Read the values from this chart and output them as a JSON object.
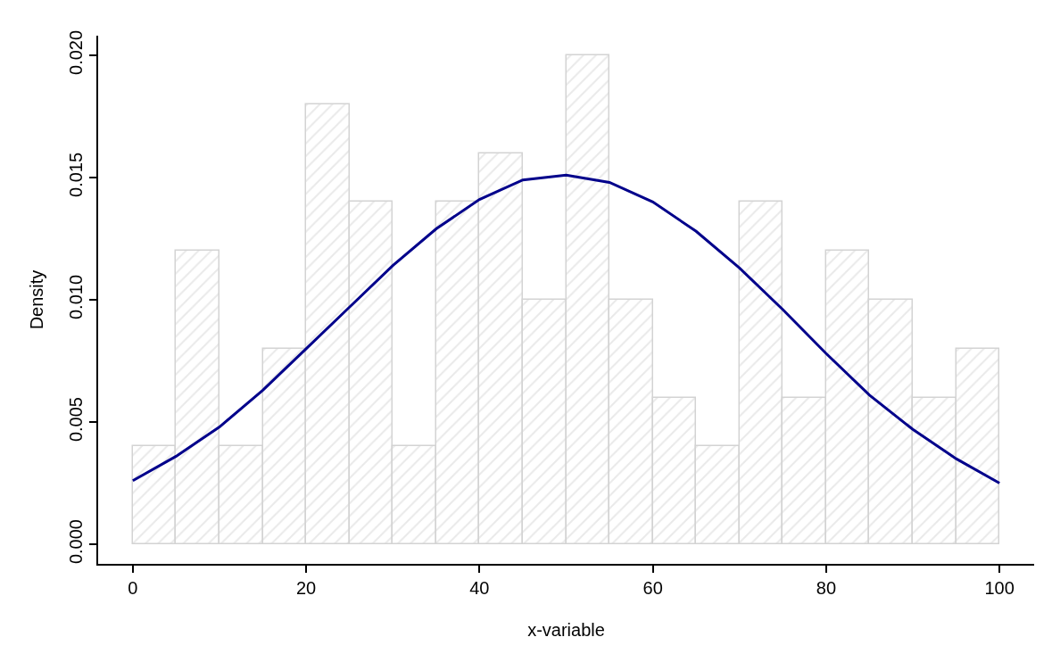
{
  "chart_data": {
    "type": "histogram",
    "xlabel": "x-variable",
    "ylabel": "Density",
    "bins": [
      0,
      5,
      10,
      15,
      20,
      25,
      30,
      35,
      40,
      45,
      50,
      55,
      60,
      65,
      70,
      75,
      80,
      85,
      90,
      95,
      100
    ],
    "values": [
      0.004,
      0.012,
      0.004,
      0.008,
      0.018,
      0.014,
      0.004,
      0.014,
      0.016,
      0.01,
      0.02,
      0.01,
      0.006,
      0.004,
      0.014,
      0.006,
      0.012,
      0.01,
      0.006,
      0.008
    ],
    "color": "#d3d3d3",
    "series": [
      {
        "type": "line",
        "color": "#00008b",
        "x": [
          0,
          5,
          10,
          15,
          20,
          25,
          30,
          35,
          40,
          45,
          50,
          55,
          60,
          65,
          70,
          75,
          80,
          85,
          90,
          95,
          100
        ],
        "values": [
          0.0026,
          0.0036,
          0.0048,
          0.0063,
          0.008,
          0.0097,
          0.0114,
          0.0129,
          0.0141,
          0.0149,
          0.0151,
          0.0148,
          0.014,
          0.0128,
          0.0113,
          0.0096,
          0.0078,
          0.0061,
          0.0047,
          0.0035,
          0.0025
        ]
      }
    ],
    "xlim": [
      -4,
      104
    ],
    "ylim": [
      -0.0008,
      0.0208
    ],
    "xticks": [
      0,
      20,
      40,
      60,
      80,
      100
    ],
    "yticks": [
      {
        "value": 0,
        "label": "0.000"
      },
      {
        "value": 0.005,
        "label": "0.005"
      },
      {
        "value": 0.01,
        "label": "0.010"
      },
      {
        "value": 0.015,
        "label": "0.015"
      },
      {
        "value": 0.02,
        "label": "0.020"
      }
    ]
  }
}
